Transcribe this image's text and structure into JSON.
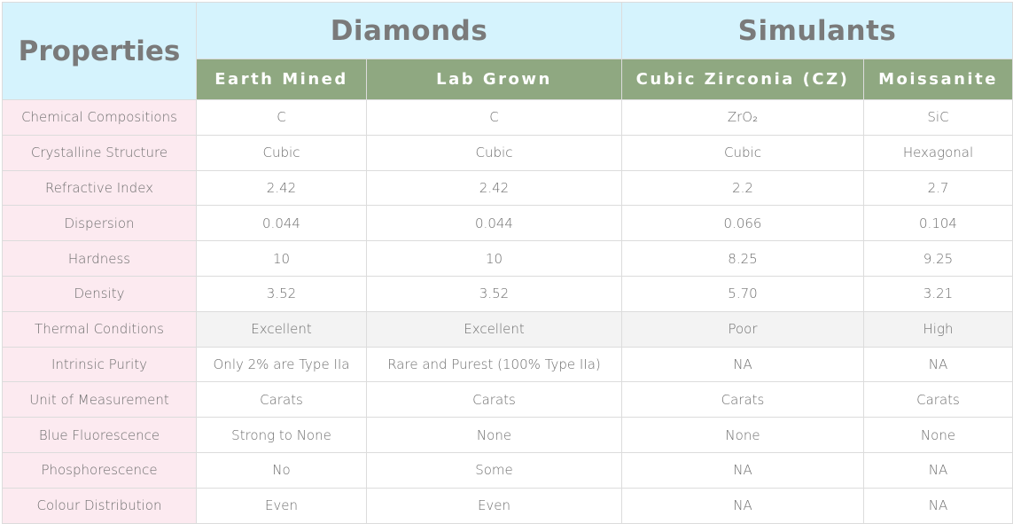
{
  "header": {
    "properties_label": "Properties",
    "groups": [
      {
        "label": "Diamonds",
        "span": 2
      },
      {
        "label": "Simulants",
        "span": 2
      }
    ],
    "columns": [
      "Earth Mined",
      "Lab Grown",
      "Cubic Zirconia (CZ)",
      "Moissanite"
    ]
  },
  "colors": {
    "header_bg": "#d5f3fd",
    "subheader_bg": "#8fa881",
    "property_bg": "#fceaf0",
    "highlight_row_bg": "#f3f3f3"
  },
  "rows": [
    {
      "property": "Chemical Compositions",
      "values": [
        "C",
        "C",
        "ZrO₂",
        "SiC"
      ]
    },
    {
      "property": "Crystalline Structure",
      "values": [
        "Cubic",
        "Cubic",
        "Cubic",
        "Hexagonal"
      ]
    },
    {
      "property": "Refractive Index",
      "values": [
        "2.42",
        "2.42",
        "2.2",
        "2.7"
      ]
    },
    {
      "property": "Dispersion",
      "values": [
        "0.044",
        "0.044",
        "0.066",
        "0.104"
      ]
    },
    {
      "property": "Hardness",
      "values": [
        "10",
        "10",
        "8.25",
        "9.25"
      ]
    },
    {
      "property": "Density",
      "values": [
        "3.52",
        "3.52",
        "5.70",
        "3.21"
      ]
    },
    {
      "property": "Thermal Conditions",
      "values": [
        "Excellent",
        "Excellent",
        "Poor",
        "High"
      ],
      "highlighted": true
    },
    {
      "property": "Intrinsic Purity",
      "values": [
        "Only 2% are Type IIa",
        "Rare and Purest (100% Type IIa)",
        "NA",
        "NA"
      ]
    },
    {
      "property": "Unit of Measurement",
      "values": [
        "Carats",
        "Carats",
        "Carats",
        "Carats"
      ]
    },
    {
      "property": "Blue Fluorescence",
      "values": [
        "Strong to None",
        "None",
        "None",
        "None"
      ]
    },
    {
      "property": "Phosphorescence",
      "values": [
        "No",
        "Some",
        "NA",
        "NA"
      ]
    },
    {
      "property": "Colour Distribution",
      "values": [
        "Even",
        "Even",
        "NA",
        "NA"
      ]
    }
  ]
}
